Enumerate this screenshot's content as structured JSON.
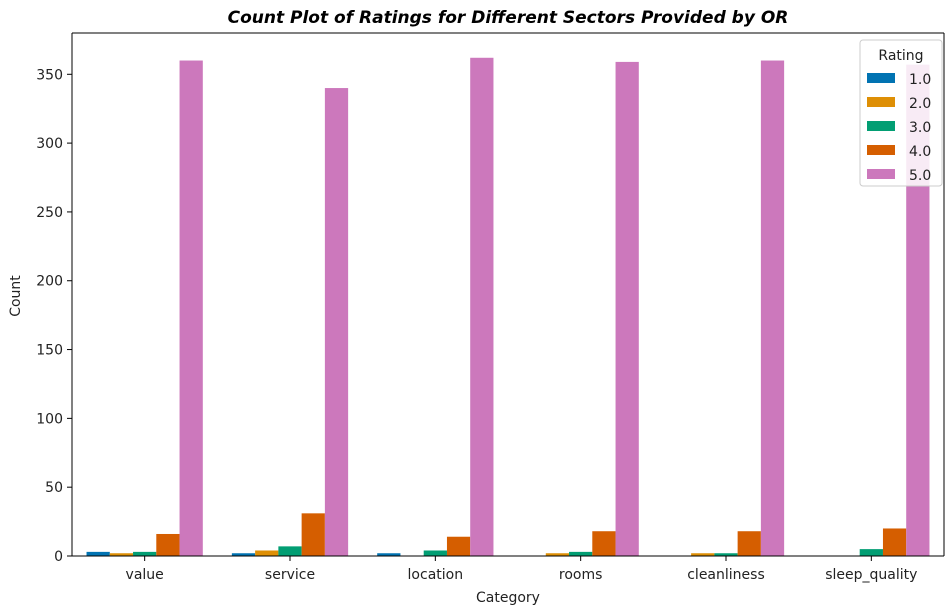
{
  "chart_data": {
    "type": "bar",
    "title": "Count Plot of Ratings for Different Sectors Provided by OR",
    "xlabel": "Category",
    "ylabel": "Count",
    "categories": [
      "value",
      "service",
      "location",
      "rooms",
      "cleanliness",
      "sleep_quality"
    ],
    "ylim": [
      0,
      380
    ],
    "yticks": [
      0,
      50,
      100,
      150,
      200,
      250,
      300,
      350
    ],
    "grid": false,
    "legend": {
      "title": "Rating",
      "placement": "top-right"
    },
    "series": [
      {
        "name": "1.0",
        "color": "#0173b2",
        "values": [
          3,
          2,
          2,
          0,
          0,
          0
        ]
      },
      {
        "name": "2.0",
        "color": "#de8f05",
        "values": [
          2,
          4,
          0,
          2,
          2,
          0
        ]
      },
      {
        "name": "3.0",
        "color": "#029e73",
        "values": [
          3,
          7,
          4,
          3,
          2,
          5
        ]
      },
      {
        "name": "4.0",
        "color": "#d55e00",
        "values": [
          16,
          31,
          14,
          18,
          18,
          20
        ]
      },
      {
        "name": "5.0",
        "color": "#cc78bc",
        "values": [
          360,
          340,
          362,
          359,
          360,
          357
        ]
      }
    ]
  }
}
